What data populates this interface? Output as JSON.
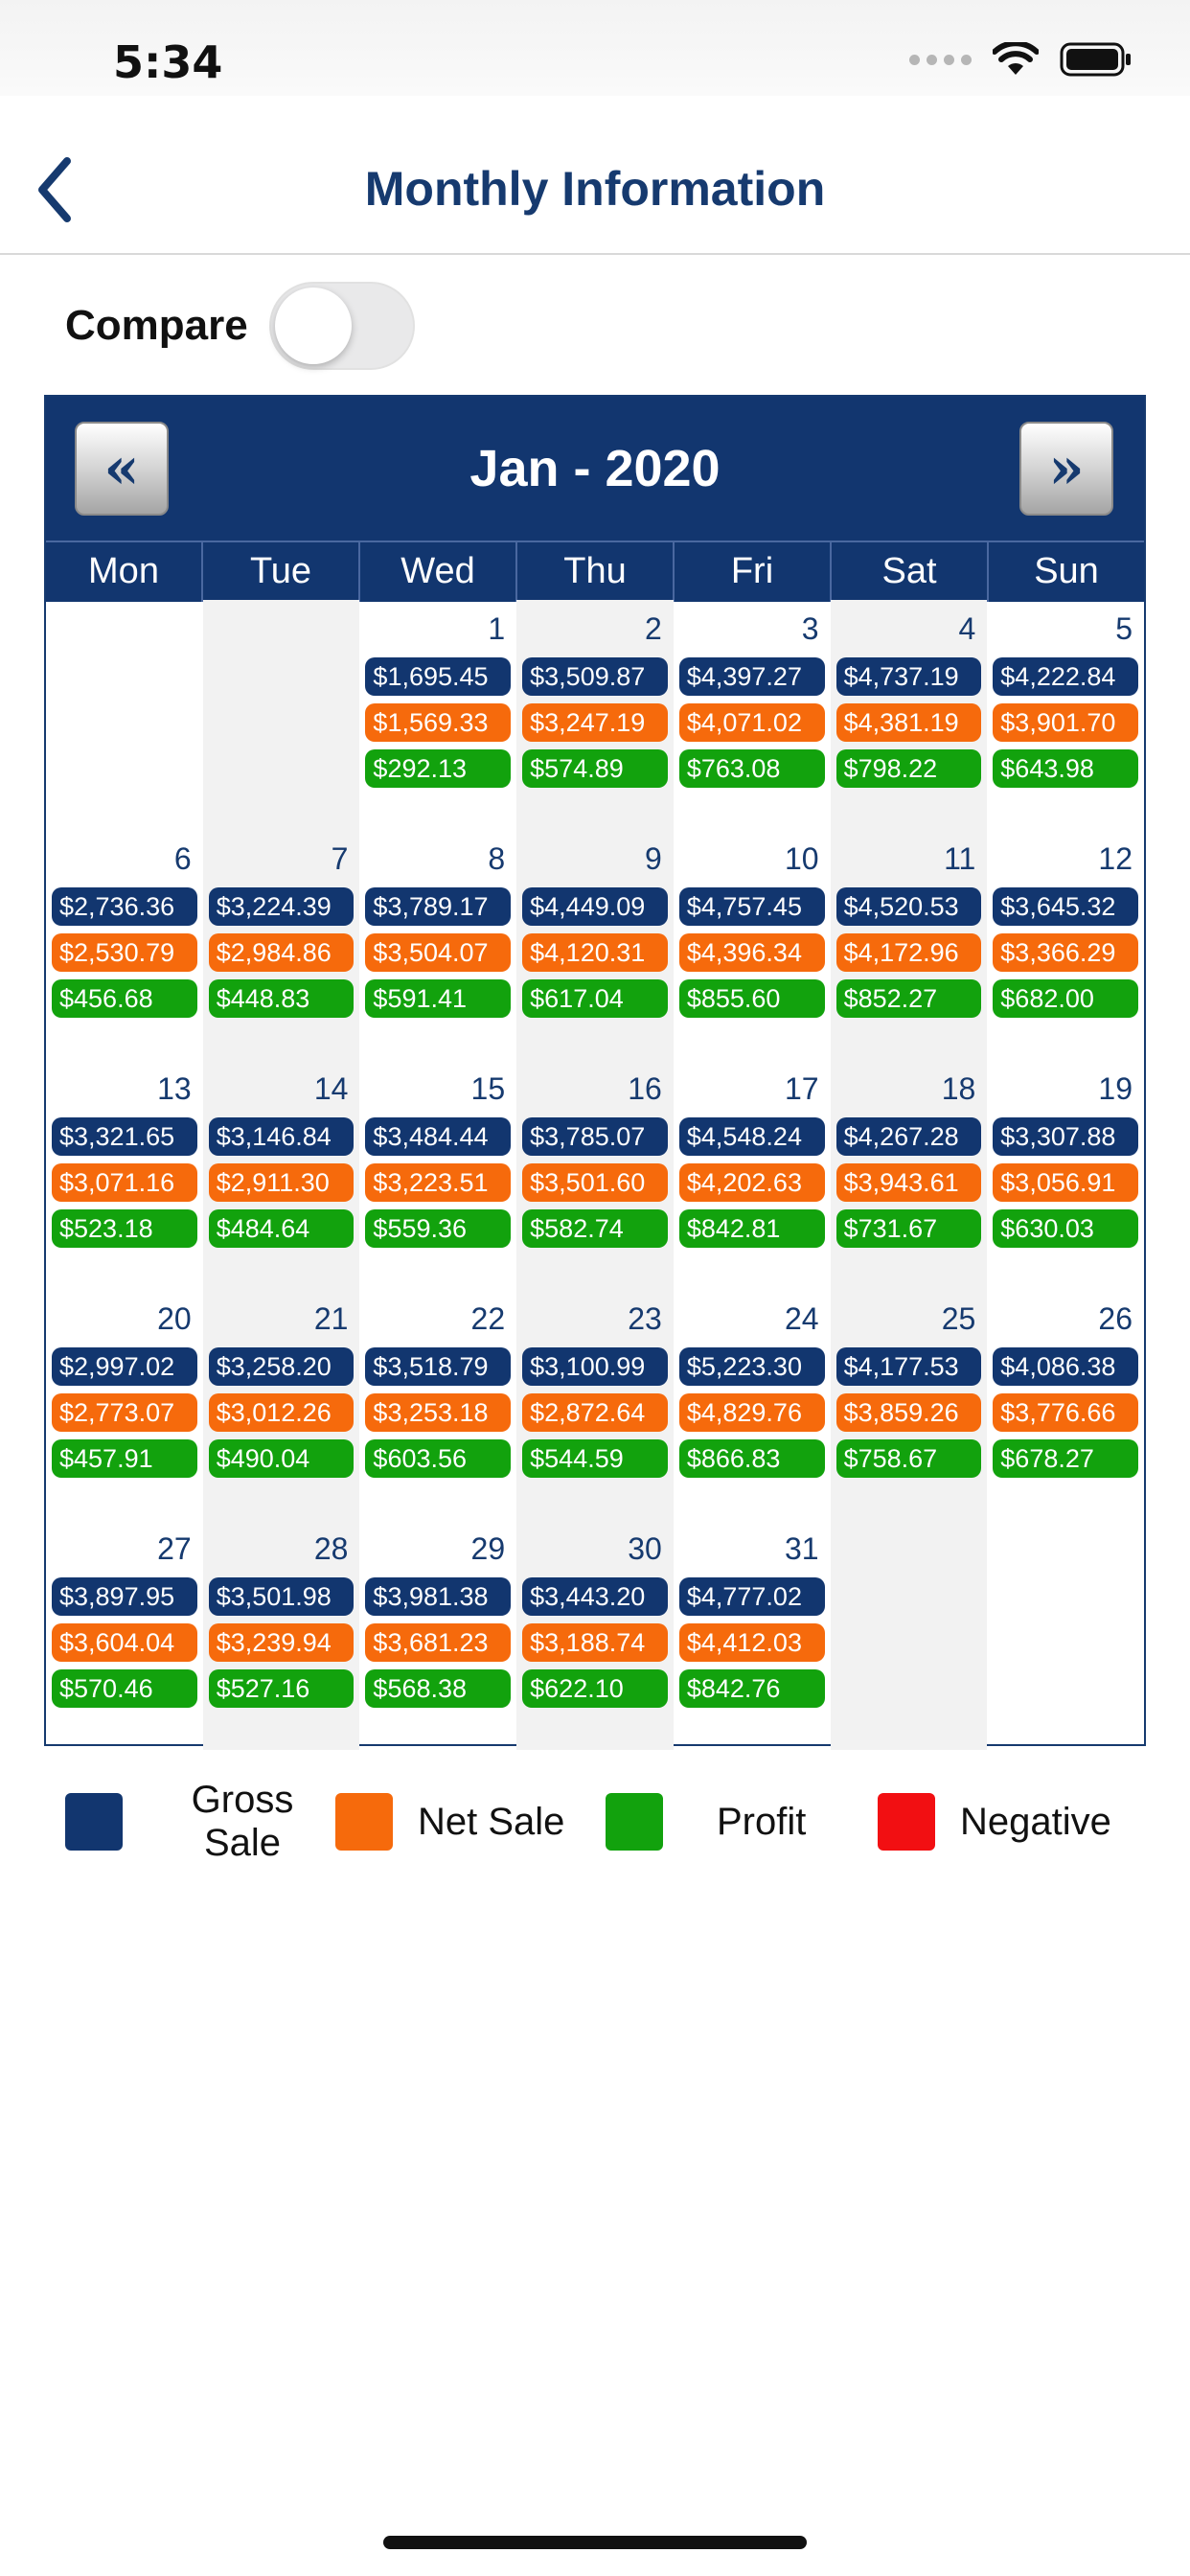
{
  "status": {
    "time": "5:34"
  },
  "nav": {
    "title": "Monthly Information"
  },
  "compare": {
    "label": "Compare",
    "enabled": false
  },
  "calendar": {
    "month_label": "Jan - 2020",
    "prev_label": "«",
    "next_label": "»",
    "weekdays": [
      "Mon",
      "Tue",
      "Wed",
      "Thu",
      "Fri",
      "Sat",
      "Sun"
    ],
    "days": [
      {
        "day": "1",
        "gross": "$1,695.45",
        "net": "$1,569.33",
        "profit": "$292.13"
      },
      {
        "day": "2",
        "gross": "$3,509.87",
        "net": "$3,247.19",
        "profit": "$574.89"
      },
      {
        "day": "3",
        "gross": "$4,397.27",
        "net": "$4,071.02",
        "profit": "$763.08"
      },
      {
        "day": "4",
        "gross": "$4,737.19",
        "net": "$4,381.19",
        "profit": "$798.22"
      },
      {
        "day": "5",
        "gross": "$4,222.84",
        "net": "$3,901.70",
        "profit": "$643.98"
      },
      {
        "day": "6",
        "gross": "$2,736.36",
        "net": "$2,530.79",
        "profit": "$456.68"
      },
      {
        "day": "7",
        "gross": "$3,224.39",
        "net": "$2,984.86",
        "profit": "$448.83"
      },
      {
        "day": "8",
        "gross": "$3,789.17",
        "net": "$3,504.07",
        "profit": "$591.41"
      },
      {
        "day": "9",
        "gross": "$4,449.09",
        "net": "$4,120.31",
        "profit": "$617.04"
      },
      {
        "day": "10",
        "gross": "$4,757.45",
        "net": "$4,396.34",
        "profit": "$855.60"
      },
      {
        "day": "11",
        "gross": "$4,520.53",
        "net": "$4,172.96",
        "profit": "$852.27"
      },
      {
        "day": "12",
        "gross": "$3,645.32",
        "net": "$3,366.29",
        "profit": "$682.00"
      },
      {
        "day": "13",
        "gross": "$3,321.65",
        "net": "$3,071.16",
        "profit": "$523.18"
      },
      {
        "day": "14",
        "gross": "$3,146.84",
        "net": "$2,911.30",
        "profit": "$484.64"
      },
      {
        "day": "15",
        "gross": "$3,484.44",
        "net": "$3,223.51",
        "profit": "$559.36"
      },
      {
        "day": "16",
        "gross": "$3,785.07",
        "net": "$3,501.60",
        "profit": "$582.74"
      },
      {
        "day": "17",
        "gross": "$4,548.24",
        "net": "$4,202.63",
        "profit": "$842.81"
      },
      {
        "day": "18",
        "gross": "$4,267.28",
        "net": "$3,943.61",
        "profit": "$731.67"
      },
      {
        "day": "19",
        "gross": "$3,307.88",
        "net": "$3,056.91",
        "profit": "$630.03"
      },
      {
        "day": "20",
        "gross": "$2,997.02",
        "net": "$2,773.07",
        "profit": "$457.91"
      },
      {
        "day": "21",
        "gross": "$3,258.20",
        "net": "$3,012.26",
        "profit": "$490.04"
      },
      {
        "day": "22",
        "gross": "$3,518.79",
        "net": "$3,253.18",
        "profit": "$603.56"
      },
      {
        "day": "23",
        "gross": "$3,100.99",
        "net": "$2,872.64",
        "profit": "$544.59"
      },
      {
        "day": "24",
        "gross": "$5,223.30",
        "net": "$4,829.76",
        "profit": "$866.83"
      },
      {
        "day": "25",
        "gross": "$4,177.53",
        "net": "$3,859.26",
        "profit": "$758.67"
      },
      {
        "day": "26",
        "gross": "$4,086.38",
        "net": "$3,776.66",
        "profit": "$678.27"
      },
      {
        "day": "27",
        "gross": "$3,897.95",
        "net": "$3,604.04",
        "profit": "$570.46"
      },
      {
        "day": "28",
        "gross": "$3,501.98",
        "net": "$3,239.94",
        "profit": "$527.16"
      },
      {
        "day": "29",
        "gross": "$3,981.38",
        "net": "$3,681.23",
        "profit": "$568.38"
      },
      {
        "day": "30",
        "gross": "$3,443.20",
        "net": "$3,188.74",
        "profit": "$622.10"
      },
      {
        "day": "31",
        "gross": "$4,777.02",
        "net": "$4,412.03",
        "profit": "$842.76"
      }
    ]
  },
  "legend": {
    "items": [
      {
        "label": "Gross Sale",
        "color": "#12366f"
      },
      {
        "label": "Net Sale",
        "color": "#f66a0c"
      },
      {
        "label": "Profit",
        "color": "#12a20d"
      },
      {
        "label": "Negative",
        "color": "#f20f12"
      }
    ]
  },
  "colors": {
    "brand": "#12366f",
    "title": "#163a6f"
  }
}
